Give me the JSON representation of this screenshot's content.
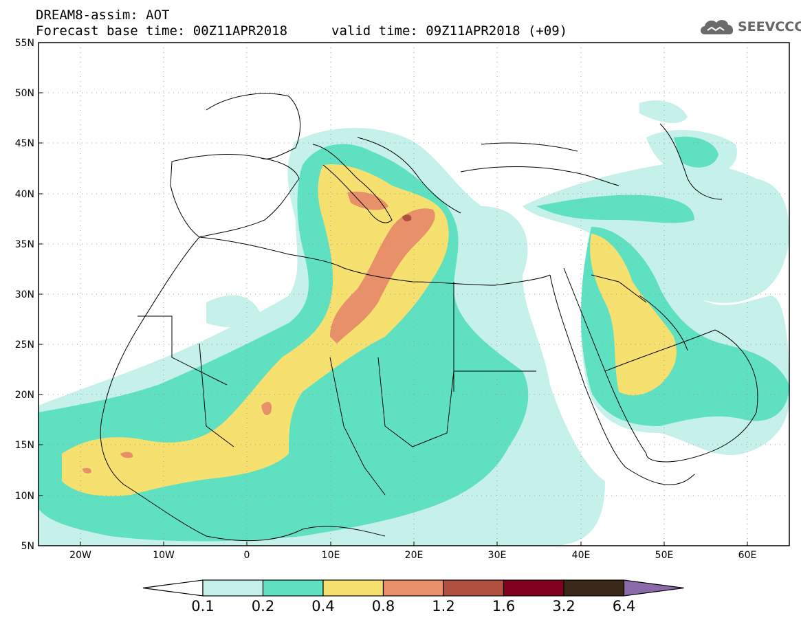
{
  "header": {
    "title_line1": "DREAM8-assim: AOT",
    "title_line2": "Forecast base time: 00Z11APR2018",
    "valid_time": "valid time: 09Z11APR2018 (+09)",
    "logo_text": "SEEVCCC",
    "logo_icon": "cloud-logo-icon"
  },
  "axes": {
    "lat_labels": [
      "55N",
      "50N",
      "45N",
      "40N",
      "35N",
      "30N",
      "25N",
      "20N",
      "15N",
      "10N",
      "5N"
    ],
    "lat_values": [
      55,
      50,
      45,
      40,
      35,
      30,
      25,
      20,
      15,
      10,
      5
    ],
    "lon_labels": [
      "20W",
      "10W",
      "0",
      "10E",
      "20E",
      "30E",
      "40E",
      "50E",
      "60E"
    ],
    "lon_values": [
      -20,
      -10,
      0,
      10,
      20,
      30,
      40,
      50,
      60
    ],
    "lon_range": [
      -25,
      65
    ],
    "lat_range": [
      5,
      55
    ],
    "grid": "dotted"
  },
  "colorbar": {
    "labels": [
      "0.1",
      "0.2",
      "0.4",
      "0.8",
      "1.2",
      "1.6",
      "3.2",
      "6.4"
    ],
    "colors": [
      "#ffffff",
      "#c6f0ea",
      "#5fe0c0",
      "#f5e070",
      "#e8906a",
      "#b05040",
      "#800020",
      "#3a2818",
      "#8a6aa8"
    ]
  }
}
